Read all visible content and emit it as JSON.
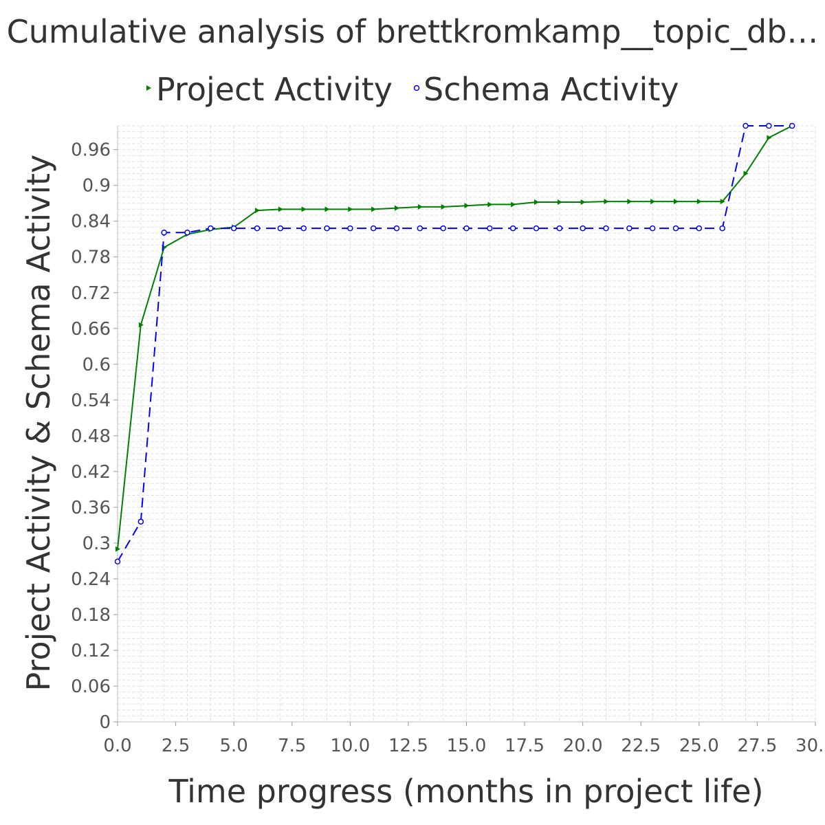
{
  "chart_data": {
    "type": "line",
    "title": "Cumulative analysis of brettkromkamp__topic_db…",
    "xlabel": "Time progress (months in project life)",
    "ylabel": "Project Activity & Schema Activity",
    "xlim": [
      0,
      30
    ],
    "ylim": [
      0,
      1.0
    ],
    "x_ticks": [
      "0.0",
      "2.5",
      "5.0",
      "7.5",
      "10.0",
      "12.5",
      "15.0",
      "17.5",
      "20.0",
      "22.5",
      "25.0",
      "27.5",
      "30.0"
    ],
    "y_ticks": [
      "0",
      "0.06",
      "0.12",
      "0.18",
      "0.24",
      "0.3",
      "0.36",
      "0.42",
      "0.48",
      "0.54",
      "0.6",
      "0.66",
      "0.72",
      "0.78",
      "0.84",
      "0.9",
      "0.96"
    ],
    "legend_position": "top",
    "grid": true,
    "series": [
      {
        "name": "Project Activity",
        "color": "#008000",
        "line_style": "solid",
        "marker": "triangle-right",
        "x": [
          0,
          1,
          2,
          3,
          4,
          5,
          6,
          7,
          8,
          9,
          10,
          11,
          12,
          13,
          14,
          15,
          16,
          17,
          18,
          19,
          20,
          21,
          22,
          23,
          24,
          25,
          26,
          27,
          28,
          29
        ],
        "y": [
          0.29,
          0.666,
          0.796,
          0.818,
          0.826,
          0.83,
          0.858,
          0.86,
          0.86,
          0.86,
          0.86,
          0.86,
          0.862,
          0.864,
          0.864,
          0.866,
          0.868,
          0.868,
          0.872,
          0.872,
          0.872,
          0.873,
          0.873,
          0.873,
          0.873,
          0.873,
          0.873,
          0.92,
          0.98,
          1.0
        ]
      },
      {
        "name": "Schema Activity",
        "color": "#0000ff",
        "line_style": "dashed",
        "marker": "circle",
        "x": [
          0,
          1,
          2,
          3,
          4,
          5,
          6,
          7,
          8,
          9,
          10,
          11,
          12,
          13,
          14,
          15,
          16,
          17,
          18,
          19,
          20,
          21,
          22,
          23,
          24,
          25,
          26,
          27,
          28,
          29
        ],
        "y": [
          0.269,
          0.336,
          0.821,
          0.821,
          0.828,
          0.828,
          0.828,
          0.828,
          0.828,
          0.828,
          0.828,
          0.828,
          0.828,
          0.828,
          0.828,
          0.828,
          0.828,
          0.828,
          0.828,
          0.828,
          0.828,
          0.828,
          0.828,
          0.828,
          0.828,
          0.828,
          0.828,
          1.0,
          1.0,
          1.0
        ]
      }
    ]
  }
}
